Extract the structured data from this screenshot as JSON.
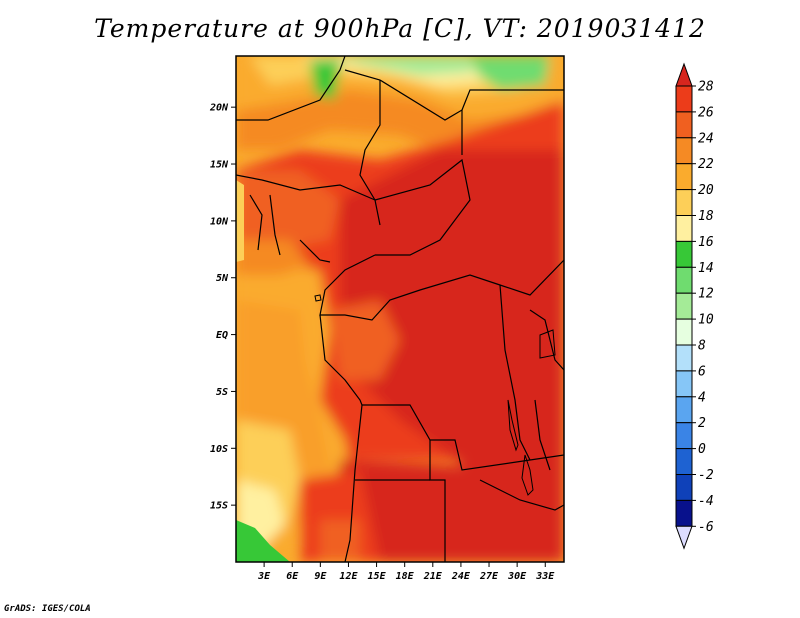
{
  "title": "Temperature at 900hPa [C], VT: 2019031412",
  "credit": "GrADS: IGES/COLA",
  "chart_data": {
    "type": "heatmap",
    "title": "Temperature at 900hPa [C], VT: 2019031412",
    "variable": "Temperature at 900hPa",
    "units": "C",
    "valid_time": "2019031412",
    "x_ticks": [
      "3E",
      "6E",
      "9E",
      "12E",
      "15E",
      "18E",
      "21E",
      "24E",
      "27E",
      "30E",
      "33E"
    ],
    "y_ticks": [
      "20N",
      "15N",
      "10N",
      "5N",
      "EQ",
      "5S",
      "10S",
      "15S"
    ],
    "xlim": [
      0,
      35
    ],
    "ylim": [
      -20,
      24.5
    ],
    "colorbar": {
      "levels": [
        28,
        26,
        24,
        22,
        20,
        18,
        16,
        14,
        12,
        10,
        8,
        6,
        4,
        2,
        0,
        -2,
        -4,
        -6
      ],
      "colors": [
        "#d7261e",
        "#ec3c1a",
        "#f06020",
        "#f58a24",
        "#faab2d",
        "#fdcf58",
        "#fff0a0",
        "#37c837",
        "#6fdc6f",
        "#a4eb97",
        "#e6ffe0",
        "#b3e0fa",
        "#86c6f7",
        "#5aa5f0",
        "#3a84e6",
        "#1e62d2",
        "#0f41b9",
        "#08118c",
        "#dcdcff"
      ]
    },
    "field_description": "Gridded temperature field over Central Africa; warmest values (26-28C) over central/eastern interior, cooler values (10-20C) over Sahara north of 17N and over the Atlantic/southwest coast."
  }
}
